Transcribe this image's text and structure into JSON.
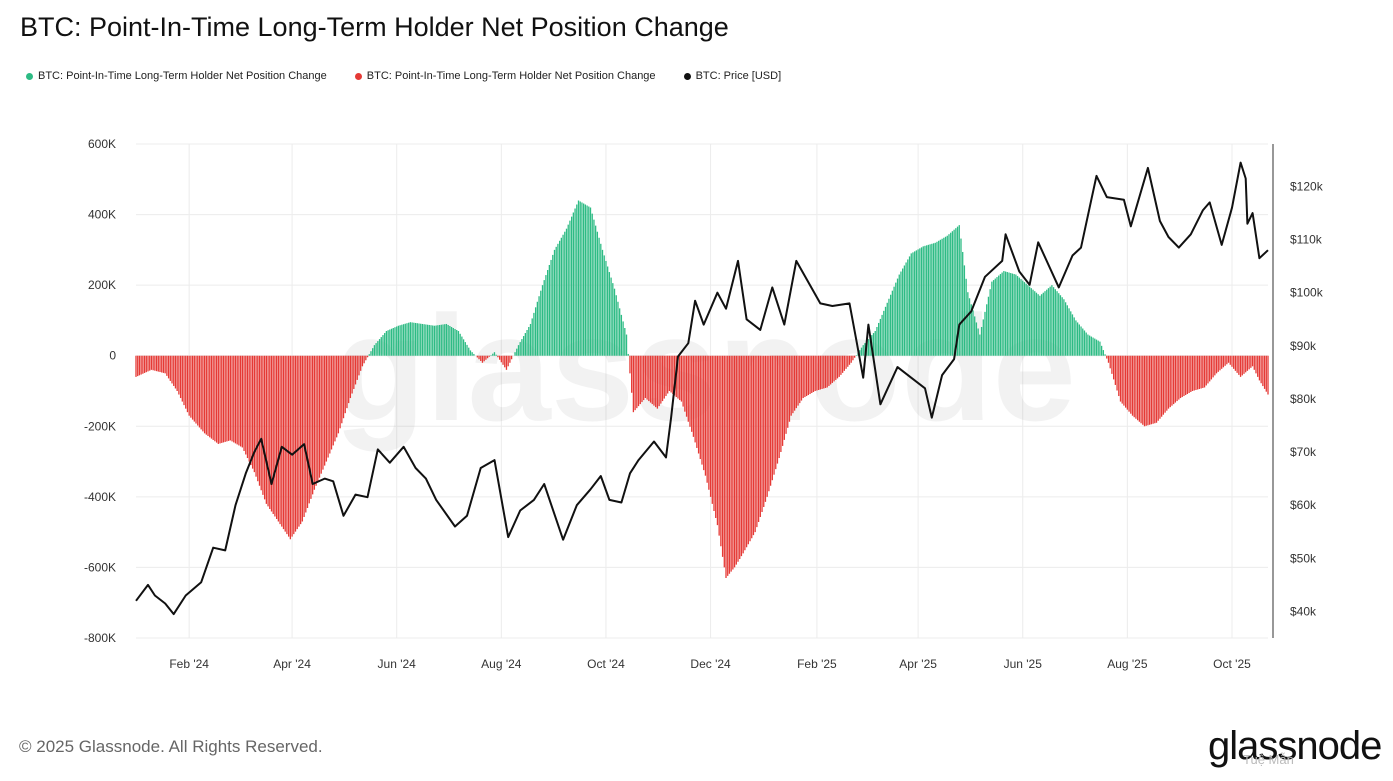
{
  "title": "BTC: Point-In-Time Long-Term Holder Net Position Change",
  "legend": [
    {
      "label": "BTC: Point-In-Time Long-Term Holder Net Position Change",
      "color": "#2dbb84"
    },
    {
      "label": "BTC: Point-In-Time Long-Term Holder Net Position Change",
      "color": "#e53935"
    },
    {
      "label": "BTC: Price [USD]",
      "color": "#111111"
    }
  ],
  "watermark_text": "glassnode",
  "footer": "© 2025 Glassnode. All Rights Reserved.",
  "brand": "glassnode",
  "corner_watermark": "Tuệ Mẫn",
  "colors": {
    "positive": "#2dbb84",
    "negative": "#e53935",
    "price": "#111111",
    "grid": "#ececec",
    "axis_text": "#333333"
  },
  "chart_data": {
    "type": "bar",
    "title": "BTC: Point-In-Time Long-Term Holder Net Position Change",
    "x_range": [
      "2024-01-01",
      "2025-10-22"
    ],
    "x_ticks": [
      {
        "date": "2024-02-01",
        "label": "Feb '24"
      },
      {
        "date": "2024-04-01",
        "label": "Apr '24"
      },
      {
        "date": "2024-06-01",
        "label": "Jun '24"
      },
      {
        "date": "2024-08-01",
        "label": "Aug '24"
      },
      {
        "date": "2024-10-01",
        "label": "Oct '24"
      },
      {
        "date": "2024-12-01",
        "label": "Dec '24"
      },
      {
        "date": "2025-02-01",
        "label": "Feb '25"
      },
      {
        "date": "2025-04-01",
        "label": "Apr '25"
      },
      {
        "date": "2025-06-01",
        "label": "Jun '25"
      },
      {
        "date": "2025-08-01",
        "label": "Aug '25"
      },
      {
        "date": "2025-10-01",
        "label": "Oct '25"
      }
    ],
    "y_left": {
      "min": -800000,
      "max": 600000,
      "ticks": [
        600000,
        400000,
        200000,
        0,
        -200000,
        -400000,
        -600000,
        -800000
      ],
      "tick_labels": [
        "600K",
        "400K",
        "200K",
        "0",
        "-200K",
        "-400K",
        "-600K",
        "-800K"
      ]
    },
    "y_right": {
      "min": 35000,
      "max": 128000,
      "ticks": [
        120000,
        110000,
        100000,
        90000,
        80000,
        70000,
        60000,
        50000,
        40000
      ],
      "tick_labels": [
        "$120k",
        "$110k",
        "$100k",
        "$90k",
        "$80k",
        "$70k",
        "$60k",
        "$50k",
        "$40k"
      ]
    },
    "grid": true,
    "series": [
      {
        "name": "BTC: Point-In-Time Long-Term Holder Net Position Change",
        "kind": "bar",
        "sign": "both",
        "axis": "left",
        "points": [
          [
            "2024-01-01",
            -60000
          ],
          [
            "2024-01-10",
            -40000
          ],
          [
            "2024-01-18",
            -50000
          ],
          [
            "2024-01-25",
            -100000
          ],
          [
            "2024-02-01",
            -170000
          ],
          [
            "2024-02-10",
            -220000
          ],
          [
            "2024-02-18",
            -250000
          ],
          [
            "2024-02-25",
            -240000
          ],
          [
            "2024-03-03",
            -260000
          ],
          [
            "2024-03-10",
            -330000
          ],
          [
            "2024-03-17",
            -420000
          ],
          [
            "2024-03-24",
            -470000
          ],
          [
            "2024-03-31",
            -520000
          ],
          [
            "2024-04-07",
            -470000
          ],
          [
            "2024-04-14",
            -380000
          ],
          [
            "2024-04-21",
            -300000
          ],
          [
            "2024-04-28",
            -220000
          ],
          [
            "2024-05-05",
            -120000
          ],
          [
            "2024-05-12",
            -30000
          ],
          [
            "2024-05-19",
            30000
          ],
          [
            "2024-05-26",
            70000
          ],
          [
            "2024-06-02",
            85000
          ],
          [
            "2024-06-09",
            95000
          ],
          [
            "2024-06-16",
            90000
          ],
          [
            "2024-06-23",
            85000
          ],
          [
            "2024-06-30",
            90000
          ],
          [
            "2024-07-07",
            70000
          ],
          [
            "2024-07-14",
            15000
          ],
          [
            "2024-07-21",
            -20000
          ],
          [
            "2024-07-28",
            10000
          ],
          [
            "2024-08-04",
            -40000
          ],
          [
            "2024-08-11",
            30000
          ],
          [
            "2024-08-18",
            90000
          ],
          [
            "2024-08-25",
            200000
          ],
          [
            "2024-09-01",
            300000
          ],
          [
            "2024-09-08",
            360000
          ],
          [
            "2024-09-15",
            440000
          ],
          [
            "2024-09-22",
            420000
          ],
          [
            "2024-09-29",
            300000
          ],
          [
            "2024-10-06",
            190000
          ],
          [
            "2024-10-13",
            60000
          ],
          [
            "2024-10-17",
            -160000
          ],
          [
            "2024-10-24",
            -120000
          ],
          [
            "2024-10-31",
            -150000
          ],
          [
            "2024-11-07",
            -100000
          ],
          [
            "2024-11-14",
            -130000
          ],
          [
            "2024-11-21",
            -230000
          ],
          [
            "2024-11-28",
            -340000
          ],
          [
            "2024-12-05",
            -480000
          ],
          [
            "2024-12-10",
            -630000
          ],
          [
            "2024-12-15",
            -600000
          ],
          [
            "2024-12-20",
            -560000
          ],
          [
            "2024-12-27",
            -500000
          ],
          [
            "2025-01-03",
            -400000
          ],
          [
            "2025-01-10",
            -290000
          ],
          [
            "2025-01-17",
            -170000
          ],
          [
            "2025-01-24",
            -120000
          ],
          [
            "2025-01-31",
            -100000
          ],
          [
            "2025-02-07",
            -90000
          ],
          [
            "2025-02-14",
            -60000
          ],
          [
            "2025-02-21",
            -20000
          ],
          [
            "2025-02-28",
            30000
          ],
          [
            "2025-03-07",
            70000
          ],
          [
            "2025-03-14",
            150000
          ],
          [
            "2025-03-21",
            230000
          ],
          [
            "2025-03-28",
            290000
          ],
          [
            "2025-04-04",
            310000
          ],
          [
            "2025-04-11",
            320000
          ],
          [
            "2025-04-18",
            340000
          ],
          [
            "2025-04-25",
            370000
          ],
          [
            "2025-04-30",
            180000
          ],
          [
            "2025-05-07",
            60000
          ],
          [
            "2025-05-14",
            210000
          ],
          [
            "2025-05-21",
            240000
          ],
          [
            "2025-05-28",
            230000
          ],
          [
            "2025-06-04",
            200000
          ],
          [
            "2025-06-11",
            170000
          ],
          [
            "2025-06-18",
            200000
          ],
          [
            "2025-06-25",
            160000
          ],
          [
            "2025-07-02",
            100000
          ],
          [
            "2025-07-09",
            60000
          ],
          [
            "2025-07-16",
            40000
          ],
          [
            "2025-07-21",
            -20000
          ],
          [
            "2025-07-28",
            -130000
          ],
          [
            "2025-08-04",
            -170000
          ],
          [
            "2025-08-11",
            -200000
          ],
          [
            "2025-08-18",
            -190000
          ],
          [
            "2025-08-25",
            -150000
          ],
          [
            "2025-09-01",
            -120000
          ],
          [
            "2025-09-08",
            -100000
          ],
          [
            "2025-09-15",
            -90000
          ],
          [
            "2025-09-22",
            -50000
          ],
          [
            "2025-09-29",
            -20000
          ],
          [
            "2025-10-06",
            -60000
          ],
          [
            "2025-10-13",
            -30000
          ],
          [
            "2025-10-17",
            -70000
          ],
          [
            "2025-10-22",
            -110000
          ]
        ]
      },
      {
        "name": "BTC: Price [USD]",
        "kind": "line",
        "axis": "right",
        "points": [
          [
            "2024-01-01",
            42000
          ],
          [
            "2024-01-08",
            45000
          ],
          [
            "2024-01-12",
            43000
          ],
          [
            "2024-01-18",
            41500
          ],
          [
            "2024-01-23",
            39500
          ],
          [
            "2024-01-30",
            43000
          ],
          [
            "2024-02-08",
            45500
          ],
          [
            "2024-02-15",
            52000
          ],
          [
            "2024-02-22",
            51500
          ],
          [
            "2024-02-28",
            60000
          ],
          [
            "2024-03-05",
            66000
          ],
          [
            "2024-03-10",
            70000
          ],
          [
            "2024-03-14",
            72500
          ],
          [
            "2024-03-20",
            64000
          ],
          [
            "2024-03-26",
            71000
          ],
          [
            "2024-04-01",
            69500
          ],
          [
            "2024-04-08",
            71500
          ],
          [
            "2024-04-13",
            64000
          ],
          [
            "2024-04-20",
            65000
          ],
          [
            "2024-04-25",
            64500
          ],
          [
            "2024-05-01",
            58000
          ],
          [
            "2024-05-08",
            62000
          ],
          [
            "2024-05-15",
            61500
          ],
          [
            "2024-05-21",
            70500
          ],
          [
            "2024-05-28",
            68000
          ],
          [
            "2024-06-05",
            71000
          ],
          [
            "2024-06-12",
            67000
          ],
          [
            "2024-06-18",
            65000
          ],
          [
            "2024-06-24",
            61000
          ],
          [
            "2024-07-05",
            56000
          ],
          [
            "2024-07-12",
            58000
          ],
          [
            "2024-07-20",
            67000
          ],
          [
            "2024-07-28",
            68500
          ],
          [
            "2024-08-05",
            54000
          ],
          [
            "2024-08-12",
            59000
          ],
          [
            "2024-08-20",
            61000
          ],
          [
            "2024-08-26",
            64000
          ],
          [
            "2024-09-06",
            53500
          ],
          [
            "2024-09-14",
            60000
          ],
          [
            "2024-09-22",
            63000
          ],
          [
            "2024-09-28",
            65500
          ],
          [
            "2024-10-03",
            61000
          ],
          [
            "2024-10-10",
            60500
          ],
          [
            "2024-10-15",
            66000
          ],
          [
            "2024-10-20",
            68500
          ],
          [
            "2024-10-29",
            72000
          ],
          [
            "2024-11-05",
            69000
          ],
          [
            "2024-11-08",
            76500
          ],
          [
            "2024-11-12",
            88000
          ],
          [
            "2024-11-18",
            90500
          ],
          [
            "2024-11-22",
            98500
          ],
          [
            "2024-11-27",
            94000
          ],
          [
            "2024-12-05",
            100000
          ],
          [
            "2024-12-10",
            97000
          ],
          [
            "2024-12-17",
            106000
          ],
          [
            "2024-12-22",
            95000
          ],
          [
            "2024-12-30",
            93000
          ],
          [
            "2025-01-06",
            101000
          ],
          [
            "2025-01-13",
            94000
          ],
          [
            "2025-01-20",
            106000
          ],
          [
            "2025-01-27",
            102000
          ],
          [
            "2025-02-03",
            98000
          ],
          [
            "2025-02-10",
            97500
          ],
          [
            "2025-02-20",
            98000
          ],
          [
            "2025-02-24",
            91000
          ],
          [
            "2025-02-28",
            84000
          ],
          [
            "2025-03-03",
            94000
          ],
          [
            "2025-03-10",
            79000
          ],
          [
            "2025-03-20",
            86000
          ],
          [
            "2025-03-28",
            84000
          ],
          [
            "2025-04-05",
            82000
          ],
          [
            "2025-04-09",
            76500
          ],
          [
            "2025-04-15",
            84500
          ],
          [
            "2025-04-22",
            87500
          ],
          [
            "2025-04-25",
            94000
          ],
          [
            "2025-05-02",
            96500
          ],
          [
            "2025-05-10",
            103000
          ],
          [
            "2025-05-20",
            106000
          ],
          [
            "2025-05-22",
            111000
          ],
          [
            "2025-05-30",
            104000
          ],
          [
            "2025-06-05",
            101500
          ],
          [
            "2025-06-10",
            109500
          ],
          [
            "2025-06-22",
            101000
          ],
          [
            "2025-06-30",
            107000
          ],
          [
            "2025-07-05",
            108500
          ],
          [
            "2025-07-11",
            117500
          ],
          [
            "2025-07-14",
            122000
          ],
          [
            "2025-07-20",
            118000
          ],
          [
            "2025-07-30",
            117500
          ],
          [
            "2025-08-03",
            112500
          ],
          [
            "2025-08-13",
            123500
          ],
          [
            "2025-08-20",
            113500
          ],
          [
            "2025-08-25",
            110500
          ],
          [
            "2025-08-31",
            108500
          ],
          [
            "2025-09-07",
            111000
          ],
          [
            "2025-09-14",
            115500
          ],
          [
            "2025-09-18",
            117000
          ],
          [
            "2025-09-25",
            109000
          ],
          [
            "2025-10-01",
            116000
          ],
          [
            "2025-10-06",
            124500
          ],
          [
            "2025-10-09",
            121500
          ],
          [
            "2025-10-10",
            113000
          ],
          [
            "2025-10-13",
            115000
          ],
          [
            "2025-10-17",
            106500
          ],
          [
            "2025-10-22",
            108000
          ]
        ]
      }
    ]
  }
}
